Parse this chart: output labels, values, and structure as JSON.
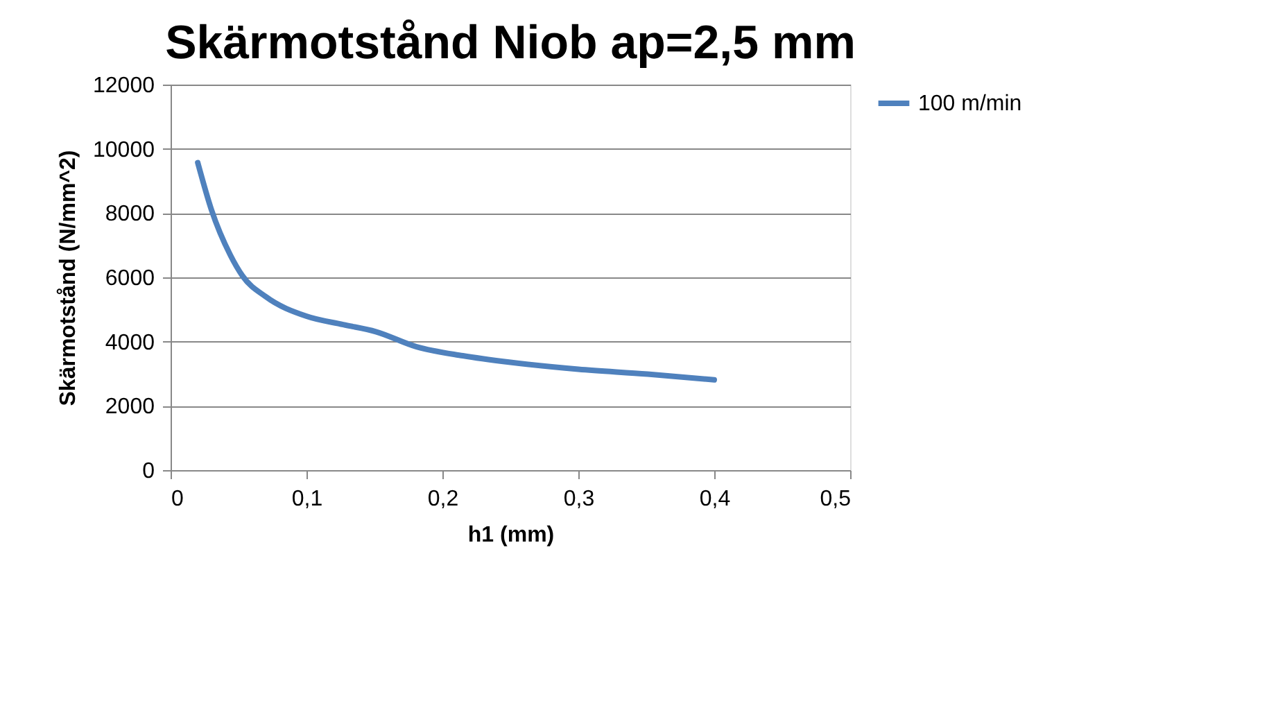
{
  "chart_data": {
    "type": "line",
    "title": "Skärmotstånd Niob ap=2,5 mm",
    "xlabel": "h1 (mm)",
    "ylabel": "Skärmotstånd (N/mm^2)",
    "xlim": [
      0,
      0.5
    ],
    "xticks": [
      0,
      {
        "value": 0.1,
        "label": "0,1"
      },
      {
        "value": 0.2,
        "label": "0,2"
      },
      {
        "value": 0.3,
        "label": "0,3"
      },
      {
        "value": 0.4,
        "label": "0,4"
      },
      {
        "value": 0.5,
        "label": "0,5"
      }
    ],
    "ylim": [
      0,
      12000
    ],
    "yticks": [
      0,
      2000,
      4000,
      6000,
      8000,
      10000,
      12000
    ],
    "grid": "y",
    "legend": "right",
    "marker": "none",
    "line_style": "solid",
    "series": [
      {
        "name": "100 m/min",
        "color": "#4f81bd",
        "x": [
          0.02,
          0.03,
          0.044,
          0.053,
          0.07,
          0.1,
          0.127,
          0.151,
          0.181,
          0.215,
          0.249,
          0.3,
          0.351,
          0.4
        ],
        "values": [
          9570,
          8110,
          6690,
          6040,
          5400,
          4790,
          4530,
          4310,
          3840,
          3560,
          3360,
          3140,
          2990,
          2810
        ]
      }
    ]
  }
}
